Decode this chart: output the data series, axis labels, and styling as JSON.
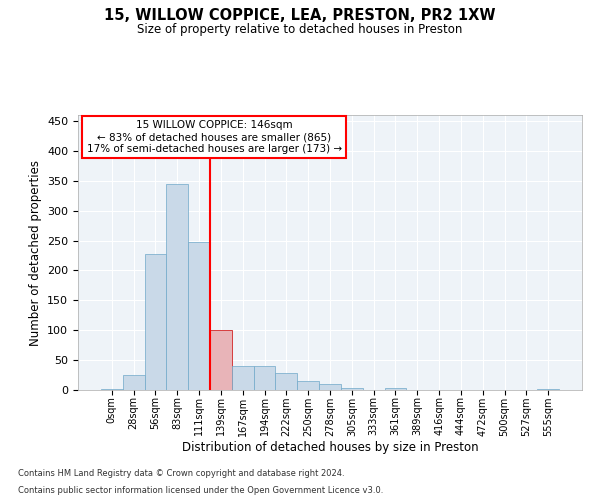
{
  "title1": "15, WILLOW COPPICE, LEA, PRESTON, PR2 1XW",
  "title2": "Size of property relative to detached houses in Preston",
  "xlabel": "Distribution of detached houses by size in Preston",
  "ylabel": "Number of detached properties",
  "footnote1": "Contains HM Land Registry data © Crown copyright and database right 2024.",
  "footnote2": "Contains public sector information licensed under the Open Government Licence v3.0.",
  "bin_labels": [
    "0sqm",
    "28sqm",
    "56sqm",
    "83sqm",
    "111sqm",
    "139sqm",
    "167sqm",
    "194sqm",
    "222sqm",
    "250sqm",
    "278sqm",
    "305sqm",
    "333sqm",
    "361sqm",
    "389sqm",
    "416sqm",
    "444sqm",
    "472sqm",
    "500sqm",
    "527sqm",
    "555sqm"
  ],
  "bar_values": [
    2,
    25,
    228,
    345,
    247,
    100,
    40,
    40,
    28,
    15,
    10,
    4,
    0,
    3,
    0,
    0,
    0,
    0,
    0,
    0,
    2
  ],
  "bar_color": "#c9d9e8",
  "bar_edge_color": "#6fa8c9",
  "highlight_bar_index": 5,
  "highlight_bar_color": "#e8b4b8",
  "highlight_bar_edge_color": "#cc0000",
  "vline_position": 4.5,
  "vline_color": "red",
  "annotation_line1": "15 WILLOW COPPICE: 146sqm",
  "annotation_line2": "← 83% of detached houses are smaller (865)",
  "annotation_line3": "17% of semi-detached houses are larger (173) →",
  "ylim": [
    0,
    460
  ],
  "yticks": [
    0,
    50,
    100,
    150,
    200,
    250,
    300,
    350,
    400,
    450
  ],
  "bg_color": "#eef3f8",
  "fig_width": 6.0,
  "fig_height": 5.0,
  "fig_dpi": 100
}
